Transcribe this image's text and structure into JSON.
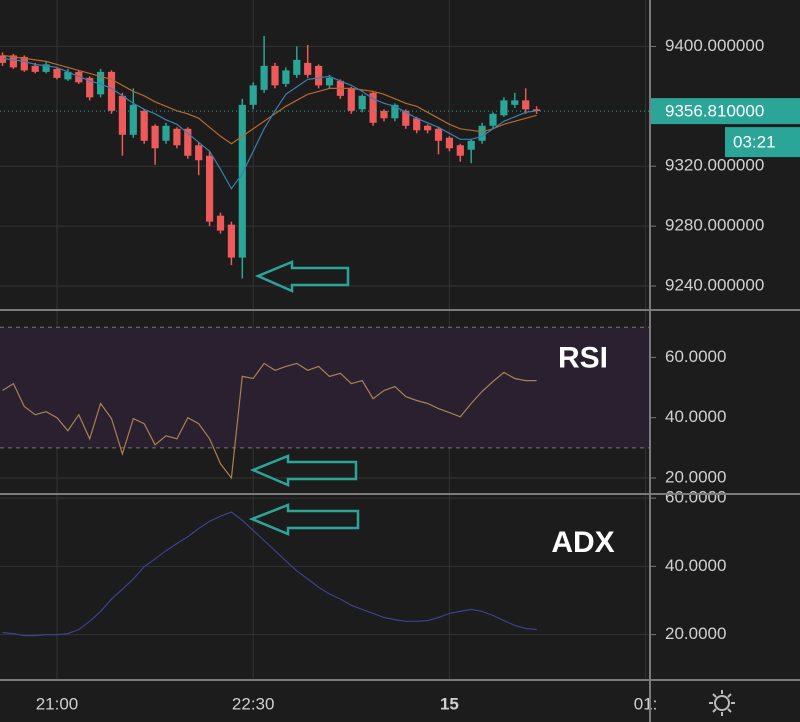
{
  "chart_data": [
    {
      "type": "candlestick",
      "categories": [
        null,
        null,
        null,
        null,
        null,
        "21:00",
        null,
        null,
        null,
        null,
        null,
        null,
        null,
        null,
        null,
        null,
        null,
        null,
        null,
        null,
        null,
        null,
        null,
        "22:30",
        null,
        null,
        null,
        null,
        null,
        null,
        null,
        null,
        null,
        null,
        null,
        null,
        null,
        null,
        null,
        null,
        null,
        "15",
        null,
        null,
        null,
        null,
        null,
        null,
        null,
        null,
        null,
        null,
        null,
        null,
        null,
        null,
        null,
        null,
        null,
        "01:"
      ],
      "open": [
        9394,
        9394,
        9393,
        9387,
        9383,
        9385,
        9378,
        9383,
        9379,
        9368,
        9383,
        9367,
        9341,
        9357,
        9347,
        9337,
        9345,
        9345,
        9334,
        9327,
        9287,
        9281,
        9259,
        9361,
        9371,
        9387,
        9375,
        9381,
        9389,
        9387,
        9374,
        9377,
        9372,
        9358,
        9369,
        9357,
        9352,
        9357,
        9352,
        9347,
        9345,
        9339,
        9334,
        9331,
        9337,
        9347,
        9354,
        9361,
        9364,
        9358,
        null,
        null,
        null,
        null,
        null,
        null,
        null,
        null,
        null,
        null
      ],
      "high": [
        9396,
        9395,
        9394,
        9389,
        9390,
        9386,
        9385,
        9384,
        9380,
        9385,
        9384,
        9369,
        9372,
        9358,
        9348,
        9349,
        9346,
        9346,
        9336,
        9330,
        9289,
        9283,
        9365,
        9376,
        9407,
        9389,
        9386,
        9400,
        9401,
        9388,
        9381,
        9378,
        9373,
        9368,
        9370,
        9358,
        9362,
        9358,
        9353,
        9348,
        9346,
        9340,
        9335,
        9338,
        9349,
        9356,
        9366,
        9369,
        9372,
        9360,
        null,
        null,
        null,
        null,
        null,
        null,
        null,
        null,
        null,
        null
      ],
      "low": [
        9387,
        9385,
        9383,
        9382,
        9382,
        9378,
        9377,
        9375,
        9364,
        9366,
        9355,
        9327,
        9339,
        9335,
        9321,
        9335,
        9332,
        9325,
        9314,
        9280,
        9275,
        9254,
        9245,
        9358,
        9369,
        9372,
        9373,
        9379,
        9379,
        9372,
        9372,
        9365,
        9355,
        9356,
        9347,
        9350,
        9350,
        9345,
        9342,
        9342,
        9328,
        9330,
        9323,
        9322,
        9335,
        9345,
        9353,
        9359,
        9355,
        9355,
        null,
        null,
        null,
        null,
        null,
        null,
        null,
        null,
        null,
        null
      ],
      "close": [
        9389,
        9386,
        9384,
        9383,
        9388,
        9379,
        9383,
        9376,
        9366,
        9383,
        9357,
        9341,
        9361,
        9337,
        9332,
        9347,
        9334,
        9327,
        9324,
        9283,
        9277,
        9259,
        9361,
        9374,
        9387,
        9374,
        9384,
        9391,
        9381,
        9374,
        9379,
        9367,
        9357,
        9367,
        9349,
        9352,
        9361,
        9347,
        9344,
        9344,
        9337,
        9332,
        9327,
        9337,
        9347,
        9355,
        9364,
        9364,
        9358,
        9356.81,
        null,
        null,
        null,
        null,
        null,
        null,
        null,
        null,
        null,
        null
      ],
      "up_color": "#2aa597",
      "down_color": "#ee5a5a",
      "lines": [
        {
          "color": "#b8692a",
          "values": [
            9394,
            9393,
            9392,
            9391,
            9390,
            9388,
            9386,
            9384,
            9382,
            9380,
            9378,
            9374,
            9370,
            9367,
            9363,
            9360,
            9357,
            9355,
            9352,
            9346,
            9340,
            9335,
            9340,
            9345,
            9350,
            9355,
            9360,
            9364,
            9368,
            9370,
            9372,
            9372,
            9372,
            9371,
            9370,
            9368,
            9365,
            9362,
            9360,
            9356,
            9352,
            9348,
            9345,
            9344,
            9343,
            9345,
            9348,
            9350,
            9352,
            9354,
            null,
            null,
            null,
            null,
            null,
            null,
            null,
            null,
            null,
            null
          ]
        },
        {
          "color": "#3a7fb3",
          "values": [
            9392,
            9391,
            9390,
            9388,
            9387,
            9386,
            9383,
            9380,
            9377,
            9375,
            9372,
            9367,
            9362,
            9358,
            9355,
            9351,
            9348,
            9342,
            9336,
            9330,
            9318,
            9305,
            9315,
            9330,
            9345,
            9357,
            9368,
            9373,
            9378,
            9379,
            9380,
            9377,
            9374,
            9370,
            9365,
            9362,
            9360,
            9356,
            9352,
            9349,
            9346,
            9342,
            9338,
            9338,
            9340,
            9345,
            9350,
            9353,
            9356,
            9357,
            null,
            null,
            null,
            null,
            null,
            null,
            null,
            null,
            null,
            null
          ]
        }
      ],
      "ylim": [
        9224,
        9431
      ],
      "yticks": [
        {
          "value": 9240,
          "label": "9240.000000"
        },
        {
          "value": 9280,
          "label": "9280.000000"
        },
        {
          "value": 9320,
          "label": "9320.000000"
        },
        {
          "value": 9400,
          "label": "9400.000000"
        }
      ],
      "last_price": {
        "value": 9356.81,
        "label": "9356.810000"
      },
      "countdown": "03:21",
      "grid": true
    },
    {
      "type": "line",
      "title": "RSI",
      "color": "#a8824f",
      "values": [
        49,
        51.3,
        43.7,
        41,
        42,
        40,
        35.7,
        41,
        33,
        44.7,
        39.7,
        28,
        39.7,
        38,
        31,
        34,
        33,
        40,
        38,
        33,
        24.7,
        20,
        53.7,
        53,
        58,
        55.7,
        57,
        58,
        55.7,
        57,
        53.7,
        54.7,
        51.3,
        52.3,
        46.3,
        49,
        50.3,
        47,
        45.7,
        44.7,
        43,
        41.7,
        40.3,
        44.7,
        48.7,
        52,
        55,
        53,
        52.3,
        52.3,
        null,
        null,
        null,
        null,
        null,
        null,
        null,
        null,
        null,
        null
      ],
      "ylim": [
        14.7,
        75.7
      ],
      "yticks": [
        {
          "value": 20,
          "label": "20.0000"
        },
        {
          "value": 40,
          "label": "40.0000"
        },
        {
          "value": 60,
          "label": "60.0000"
        }
      ],
      "band": [
        30,
        70
      ],
      "band_color": "#2a2030",
      "grid": true
    },
    {
      "type": "line",
      "title": "ADX",
      "color": "#3d408e",
      "values": [
        20.6,
        20.3,
        19.7,
        19.7,
        20,
        20,
        20.3,
        21.5,
        23.9,
        26.8,
        30.4,
        33.3,
        36.3,
        39.9,
        42.2,
        44.6,
        46.7,
        48.7,
        51.1,
        53.2,
        54.7,
        55.9,
        53.5,
        50.5,
        47.6,
        44.6,
        41.6,
        38.7,
        36.3,
        33.9,
        31.9,
        30.4,
        28.6,
        27.4,
        26.2,
        25,
        24.4,
        23.9,
        23.9,
        24.1,
        25,
        26.2,
        26.8,
        27.4,
        26.8,
        25.6,
        24.1,
        22.7,
        21.8,
        21.5,
        null,
        null,
        null,
        null,
        null,
        null,
        null,
        null,
        null,
        null
      ],
      "ylim": [
        6.7,
        61.2
      ],
      "yticks": [
        {
          "value": 20,
          "label": "20.0000"
        },
        {
          "value": 40,
          "label": "40.0000"
        },
        {
          "value": 60,
          "label": "60.0000"
        }
      ],
      "grid": true
    }
  ]
}
